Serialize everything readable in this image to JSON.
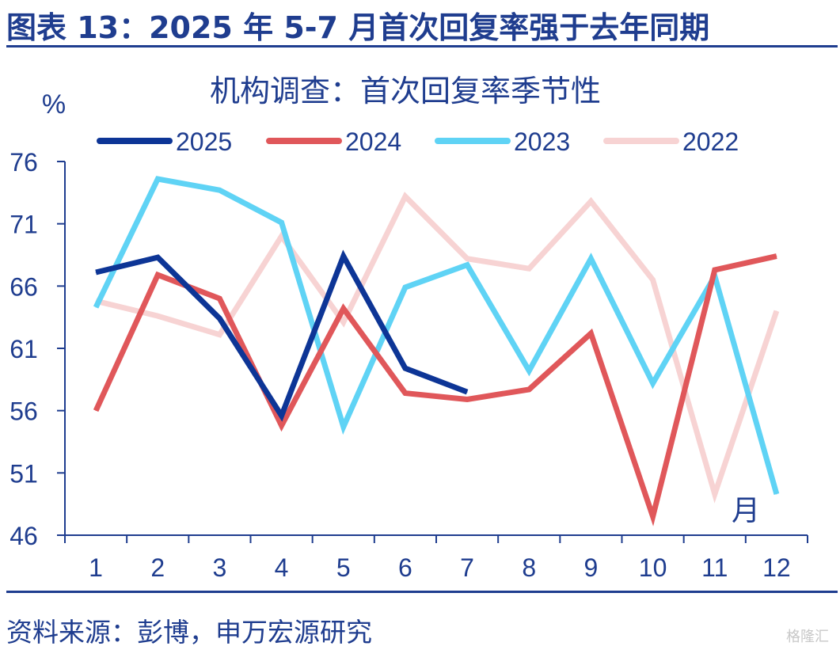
{
  "figure": {
    "title": "图表 13：2025 年 5-7 月首次回复率强于去年同期",
    "source": "资料来源：彭博，申万宏源研究",
    "watermark": "格隆汇"
  },
  "chart_data": {
    "type": "line",
    "title": "机构调查：首次回复率季节性",
    "ylabel": "%",
    "xlabel": "月",
    "ylim": [
      46,
      76
    ],
    "yticks": [
      46,
      51,
      56,
      61,
      66,
      71,
      76
    ],
    "categories": [
      "1",
      "2",
      "3",
      "4",
      "5",
      "6",
      "7",
      "8",
      "9",
      "10",
      "11",
      "12"
    ],
    "legend_position": "top",
    "grid": false,
    "series": [
      {
        "name": "2025",
        "color": "#0d3596",
        "values": [
          67.1,
          68.3,
          63.4,
          55.6,
          68.4,
          59.4,
          57.5,
          null,
          null,
          null,
          null,
          null
        ]
      },
      {
        "name": "2024",
        "color": "#e0575a",
        "values": [
          56.0,
          66.9,
          65.0,
          54.8,
          64.2,
          57.4,
          56.9,
          57.7,
          62.2,
          47.5,
          67.3,
          68.4
        ]
      },
      {
        "name": "2023",
        "color": "#5fd3f5",
        "values": [
          64.3,
          74.6,
          73.7,
          71.1,
          54.7,
          65.9,
          67.7,
          59.2,
          68.2,
          58.2,
          66.8,
          49.3
        ]
      },
      {
        "name": "2022",
        "color": "#f7d3d3",
        "values": [
          64.8,
          63.6,
          62.1,
          70.0,
          63.1,
          73.2,
          68.2,
          67.4,
          72.8,
          66.5,
          49.3,
          64.0
        ]
      }
    ]
  }
}
